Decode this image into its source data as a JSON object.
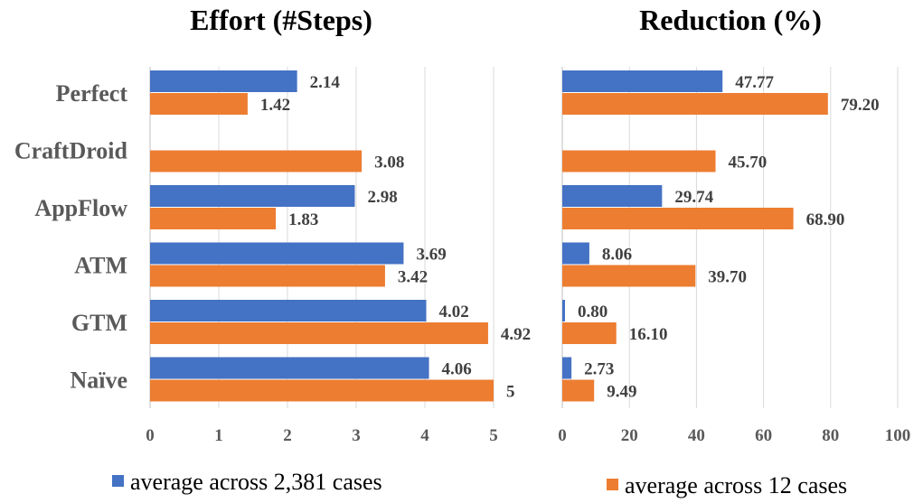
{
  "chart_data": [
    {
      "type": "bar",
      "orientation": "horizontal",
      "title": "Effort (#Steps)",
      "categories": [
        "Perfect",
        "CraftDroid",
        "AppFlow",
        "ATM",
        "GTM",
        "Naïve"
      ],
      "series": [
        {
          "name": "average across 2,381 cases",
          "color": "#4472C4",
          "values": [
            2.14,
            null,
            2.98,
            3.69,
            4.02,
            4.06
          ],
          "labels": [
            "2.14",
            "",
            "2.98",
            "3.69",
            "4.02",
            "4.06"
          ]
        },
        {
          "name": "average across 12 cases",
          "color": "#ED7D31",
          "values": [
            1.42,
            3.08,
            1.83,
            3.42,
            4.92,
            5
          ],
          "labels": [
            "1.42",
            "3.08",
            "1.83",
            "3.42",
            "4.92",
            "5"
          ]
        }
      ],
      "xlim": [
        0,
        5
      ],
      "xticks": [
        "0",
        "1",
        "2",
        "3",
        "4",
        "5"
      ],
      "grid": true
    },
    {
      "type": "bar",
      "orientation": "horizontal",
      "title": "Reduction (%)",
      "categories": [
        "Perfect",
        "CraftDroid",
        "AppFlow",
        "ATM",
        "GTM",
        "Naïve"
      ],
      "series": [
        {
          "name": "average across 2,381 cases",
          "color": "#4472C4",
          "values": [
            47.77,
            null,
            29.74,
            8.06,
            0.8,
            2.73
          ],
          "labels": [
            "47.77",
            "",
            "29.74",
            "8.06",
            "0.80",
            "2.73"
          ]
        },
        {
          "name": "average across 12 cases",
          "color": "#ED7D31",
          "values": [
            79.2,
            45.7,
            68.9,
            39.7,
            16.1,
            9.49
          ],
          "labels": [
            "79.20",
            "45.70",
            "68.90",
            "39.70",
            "16.10",
            "9.49"
          ]
        }
      ],
      "xlim": [
        0,
        100
      ],
      "xticks": [
        "0",
        "20",
        "40",
        "60",
        "80",
        "100"
      ],
      "grid": true
    }
  ],
  "legend": [
    {
      "label": "average across 2,381 cases",
      "color": "#4472C4"
    },
    {
      "label": "average across 12 cases",
      "color": "#ED7D31"
    }
  ]
}
